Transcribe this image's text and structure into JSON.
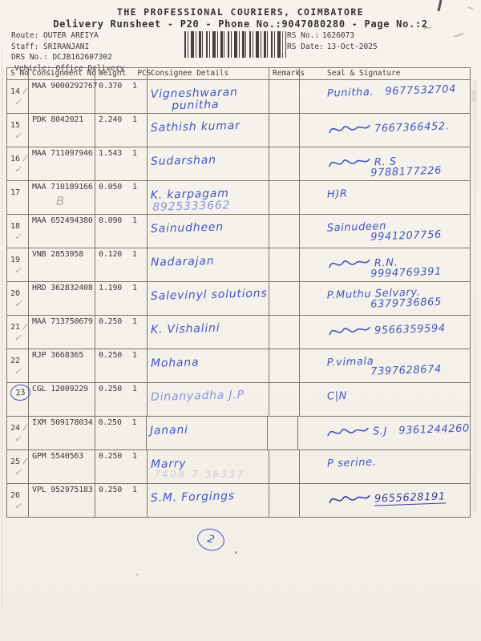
{
  "header": {
    "title": "THE PROFESSIONAL COURIERS, COIMBATORE",
    "subtitle": "Delivery Runsheet - P20 - Phone No.:9047080280 - Page No.:2",
    "meta": [
      "Route: OUTER AREIYA",
      "Staff: SRIRANJANI",
      "DRS No.: DCJB162607302",
      "Vehicle: Office Delivery"
    ],
    "rs_no_label": "RS No.:",
    "rs_no": "1626073",
    "rs_date_label": "RS Date:",
    "rs_date": "13-Oct-2025"
  },
  "icons": {
    "check_mark": "✓",
    "barcode": "code128-style vertical bars"
  },
  "colors": {
    "paper": "#f4f1ea",
    "print_ink": "#3f3d39",
    "table_line": "#7c766b",
    "pen_blue": "#4355c0",
    "pen_light_blue": "#8a95dc",
    "pen_dark_blue": "#3c3ca2",
    "pencil_grey": "#b3ada1"
  },
  "table": {
    "columns": [
      "S No",
      "Consignment No",
      "Weight",
      "PCS",
      "Consignee Details",
      "Remarks",
      "Seal & Signature"
    ],
    "rows": [
      {
        "sno": "14",
        "consignment": "MAA 9000292767",
        "weight": "0.370",
        "pcs": "1",
        "mark": "check",
        "slash": true,
        "consignee": [
          "Vigneshwaran",
          "punitha"
        ],
        "sig": [
          "Punitha.   9677532704"
        ],
        "scribble": false
      },
      {
        "sno": "15",
        "consignment": "PDK 8042021",
        "weight": "2.240",
        "pcs": "1",
        "mark": "check",
        "slash": false,
        "consignee": [
          "Sathish kumar"
        ],
        "sig": [
          "7667366452."
        ],
        "scribble": true
      },
      {
        "sno": "16",
        "consignment": "MAA 711097946",
        "weight": "1.543",
        "pcs": "1",
        "mark": "check",
        "slash": true,
        "consignee": [
          "Sudarshan"
        ],
        "sig": [
          "R. S",
          "9788177226"
        ],
        "scribble": true
      },
      {
        "sno": "17",
        "consignment": "MAA 710189166",
        "weight": "0.050",
        "pcs": "1",
        "mark": "none",
        "slash": false,
        "consignment_note": "B",
        "consignee": [
          "K. karpagam",
          "8925333662"
        ],
        "consignee_line2_light": true,
        "sig": [
          "H)R"
        ],
        "scribble": false
      },
      {
        "sno": "18",
        "consignment": "MAA 652494380",
        "weight": "0.090",
        "pcs": "1",
        "mark": "check",
        "slash": false,
        "consignee": [
          "Sainudheen"
        ],
        "sig": [
          "Sainudeen",
          "9941207756"
        ],
        "scribble": false
      },
      {
        "sno": "19",
        "consignment": "VNB 2853958",
        "weight": "0.120",
        "pcs": "1",
        "mark": "check",
        "slash": false,
        "consignee": [
          "Nadarajan"
        ],
        "sig": [
          "R.N.",
          "9994769391"
        ],
        "scribble": true
      },
      {
        "sno": "20",
        "consignment": "HRD 362832408",
        "weight": "1.190",
        "pcs": "1",
        "mark": "check",
        "slash": false,
        "consignee": [
          "Salevinyl solutions"
        ],
        "sig": [
          "P.Muthu Selvary.",
          "6379736865"
        ],
        "scribble": false
      },
      {
        "sno": "21",
        "consignment": "MAA 713750679",
        "weight": "0.250",
        "pcs": "1",
        "mark": "check",
        "slash": true,
        "consignee": [
          "K. Vishalini"
        ],
        "sig": [
          "9566359594"
        ],
        "scribble": true
      },
      {
        "sno": "22",
        "consignment": "RJP 3668365",
        "weight": "0.250",
        "pcs": "1",
        "mark": "check",
        "slash": false,
        "consignee": [
          "Mohana"
        ],
        "sig": [
          "P.vimala",
          "7397628674"
        ],
        "scribble": false
      },
      {
        "sno": "23",
        "consignment": "CGL 12009229",
        "weight": "0.250",
        "pcs": "1",
        "mark": "circle",
        "slash": false,
        "consignee": [
          "Dinanyadha J.P"
        ],
        "consignee_tone": "light",
        "sig": [
          "C|N"
        ],
        "scribble": false
      },
      {
        "sno": "24",
        "consignment": "IXM 509178034",
        "weight": "0.250",
        "pcs": "1",
        "mark": "check",
        "slash": true,
        "consignee": [
          "Janani"
        ],
        "sig": [
          "S.J   9361244260"
        ],
        "scribble": true
      },
      {
        "sno": "25",
        "consignment": "GPM 5540563",
        "weight": "0.250",
        "pcs": "1",
        "mark": "check",
        "slash": true,
        "consignee": [
          "Marry"
        ],
        "consignee_note": "7408 7 36337",
        "sig": [
          "P serine."
        ],
        "scribble": false
      },
      {
        "sno": "26",
        "consignment": "VPL 952975183",
        "weight": "0.250",
        "pcs": "1",
        "mark": "check",
        "slash": false,
        "consignee": [
          "S.M. Forgings"
        ],
        "sig": [
          "9655628191"
        ],
        "scribble": true,
        "tone": "dark",
        "sig_underline": true
      }
    ]
  },
  "footer": {
    "page_mark": "2"
  }
}
